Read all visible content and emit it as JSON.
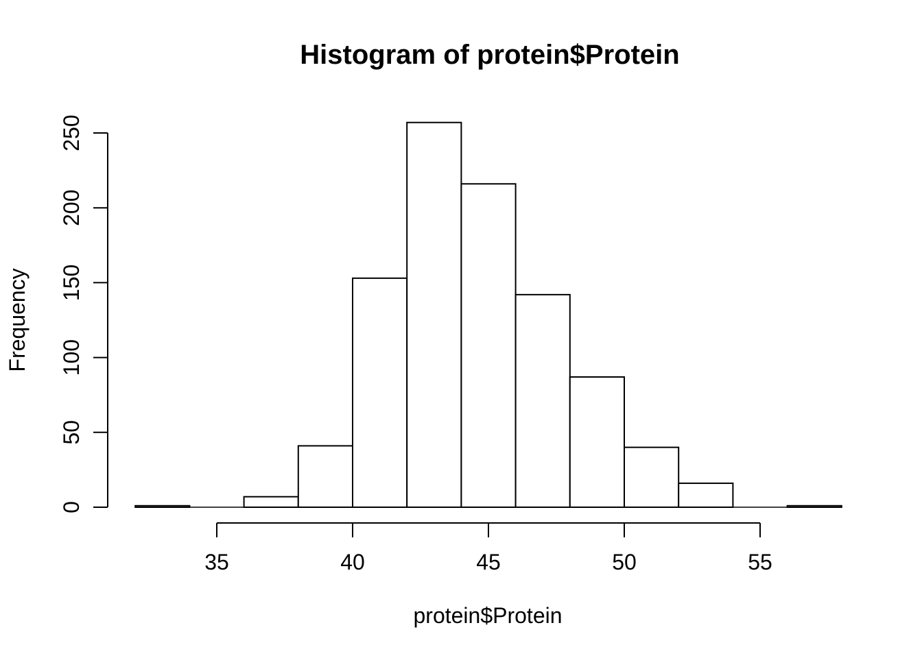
{
  "page": {
    "background_color": "#ffffff",
    "foreground_color": "#000000"
  },
  "chart_data": {
    "type": "bar",
    "subtype": "histogram",
    "title": "Histogram of protein$Protein",
    "xlabel": "protein$Protein",
    "ylabel": "Frequency",
    "bin_start": 32,
    "bin_width": 2,
    "bin_edges": [
      32,
      34,
      36,
      38,
      40,
      42,
      44,
      46,
      48,
      50,
      52,
      54,
      56,
      58
    ],
    "counts": [
      1,
      0,
      7,
      41,
      153,
      257,
      216,
      142,
      87,
      40,
      16,
      0,
      1
    ],
    "x_ticks": [
      35,
      40,
      45,
      50,
      55
    ],
    "y_ticks": [
      0,
      50,
      100,
      150,
      200,
      250
    ],
    "xlim": [
      32,
      58
    ],
    "ylim": [
      0,
      250
    ],
    "grid": false,
    "legend": null,
    "bar_fill": "#ffffff",
    "bar_stroke": "#000000",
    "axis_color": "#000000",
    "text_color": "#000000"
  }
}
